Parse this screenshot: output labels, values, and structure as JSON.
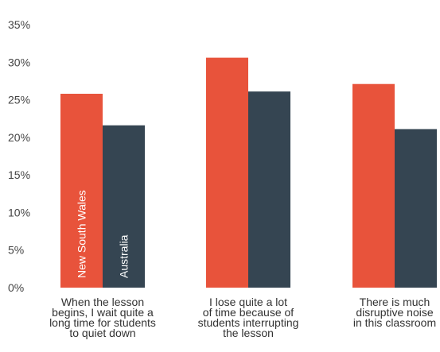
{
  "chart_data": {
    "type": "bar",
    "categories": [
      [
        "When the lesson",
        "begins, I wait quite a",
        "long time for students",
        "to quiet down"
      ],
      [
        "I lose quite a lot",
        "of time because of",
        "students interrupting",
        "the lesson"
      ],
      [
        "There is much",
        "disruptive noise",
        "in this classroom"
      ]
    ],
    "series": [
      {
        "name": "New South Wales",
        "values": [
          25.8,
          30.6,
          27.1
        ],
        "color": "#e8533b"
      },
      {
        "name": "Australia",
        "values": [
          21.6,
          26.1,
          21.1
        ],
        "color": "#354552"
      }
    ],
    "yticks": [
      "0%",
      "5%",
      "10%",
      "15%",
      "20%",
      "25%",
      "30%",
      "35%"
    ],
    "ylim": [
      0,
      35
    ],
    "grid": false,
    "legend": "inside-first-bars"
  }
}
